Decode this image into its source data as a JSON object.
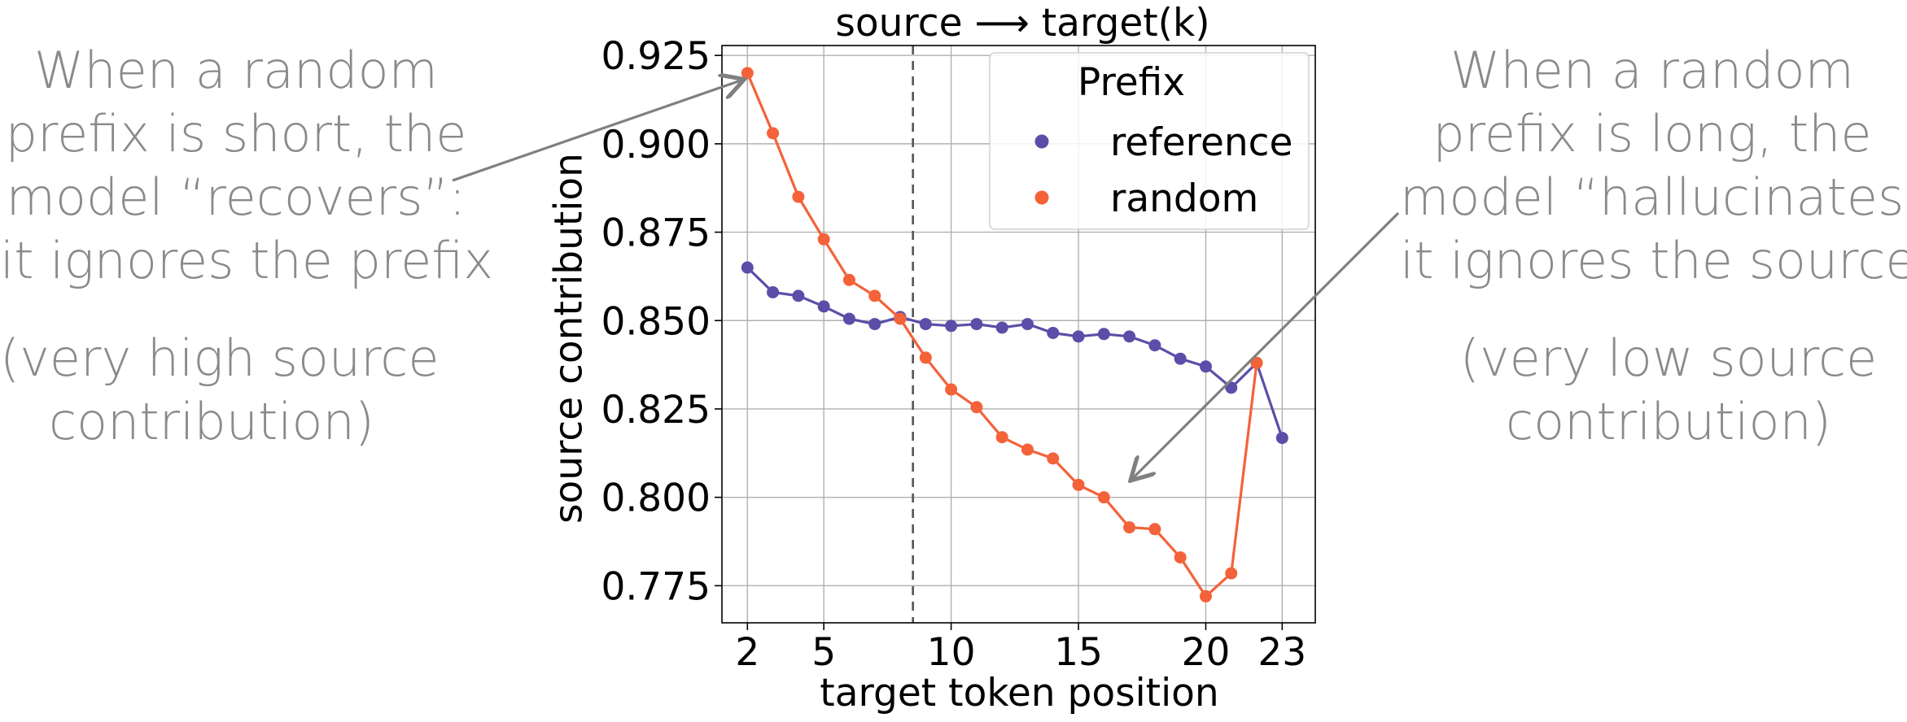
{
  "chart_data": {
    "type": "line",
    "title": "source ⟶ target(k)",
    "xlabel": "target token position",
    "ylabel": "source contribution",
    "x": [
      2,
      3,
      4,
      5,
      6,
      7,
      8,
      9,
      10,
      11,
      12,
      13,
      14,
      15,
      16,
      17,
      18,
      19,
      20,
      21,
      22,
      23
    ],
    "xticks": [
      "2",
      "5",
      "10",
      "15",
      "20",
      "23"
    ],
    "yticks": [
      "0.775",
      "0.800",
      "0.825",
      "0.850",
      "0.875",
      "0.900",
      "0.925"
    ],
    "xlim": [
      1,
      24.3
    ],
    "ylim": [
      0.7645,
      0.9278
    ],
    "grid": true,
    "vline_x": 8.5,
    "legend": {
      "title": "Prefix",
      "placement": "top-right"
    },
    "series": [
      {
        "name": "reference",
        "color": "#5b4ea8",
        "x": [
          2,
          3,
          4,
          5,
          6,
          7,
          8,
          9,
          10,
          11,
          12,
          13,
          14,
          15,
          16,
          17,
          18,
          19,
          20,
          21,
          22,
          23
        ],
        "values": [
          0.865,
          0.858,
          0.857,
          0.854,
          0.8505,
          0.849,
          0.851,
          0.849,
          0.8485,
          0.849,
          0.848,
          0.849,
          0.8465,
          0.8455,
          0.8462,
          0.8455,
          0.843,
          0.8392,
          0.837,
          0.831,
          0.838,
          0.8168
        ]
      },
      {
        "name": "random",
        "color": "#f4623a",
        "x": [
          2,
          3,
          4,
          5,
          6,
          7,
          8,
          9,
          10,
          11,
          12,
          13,
          14,
          15,
          16,
          17,
          18,
          19,
          20,
          21,
          22
        ],
        "values": [
          0.92,
          0.903,
          0.885,
          0.873,
          0.8615,
          0.857,
          0.8505,
          0.8395,
          0.8305,
          0.8255,
          0.817,
          0.8135,
          0.811,
          0.8035,
          0.8,
          0.7915,
          0.791,
          0.783,
          0.772,
          0.7785,
          0.838
        ]
      }
    ]
  },
  "annotations": {
    "left_main": [
      "When a random",
      "prefix is short, the",
      "model “recovers”:",
      "it ignores the prefix"
    ],
    "left_sub": [
      "(very high source",
      "contribution)"
    ],
    "right_main": [
      "When a random",
      "prefix is long, the",
      "model “hallucinates”:",
      "it ignores the source"
    ],
    "right_sub": [
      "(very low source",
      "contribution)"
    ]
  },
  "colors": {
    "annotation_text": "#8a8a8a",
    "arrow": "#808080",
    "grid": "#b0b0b0",
    "vline": "#555555"
  }
}
